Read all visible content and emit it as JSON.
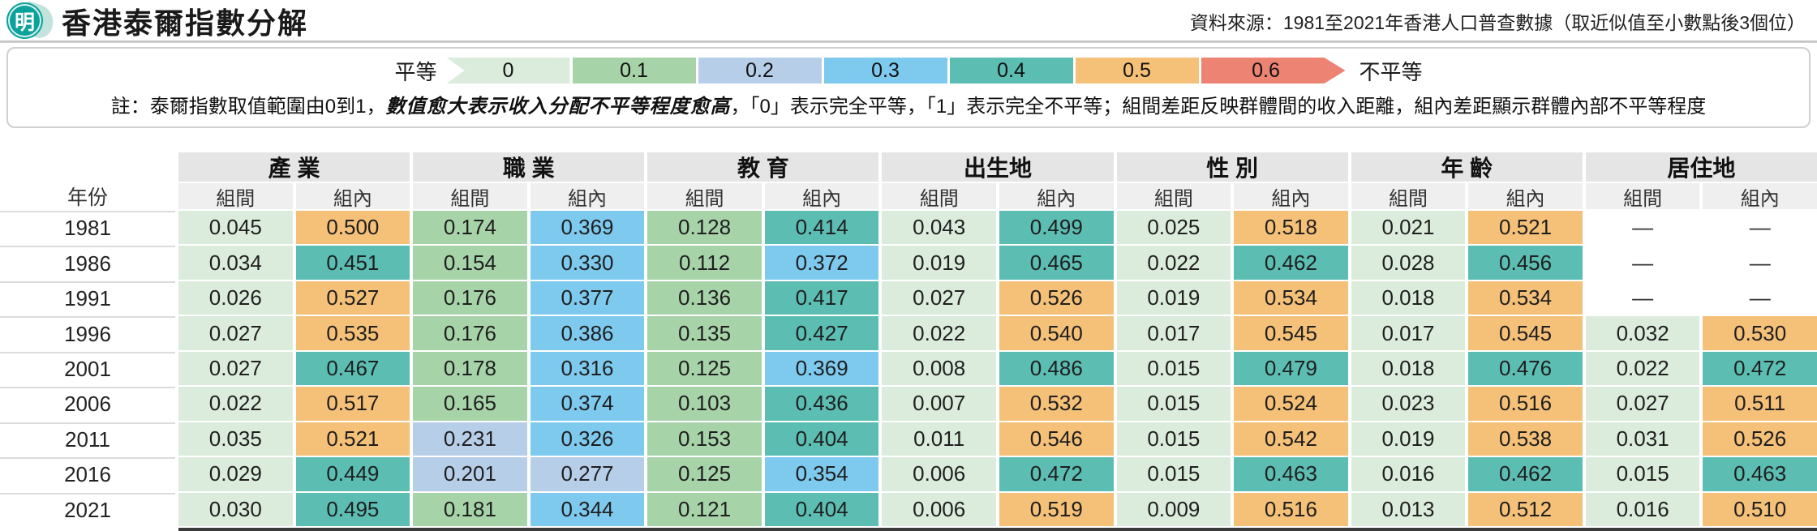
{
  "header": {
    "logo_text": "明",
    "title": "香港泰爾指數分解",
    "source": "資料來源：1981至2021年香港人口普查數據（取近似值至小數點後3個位）"
  },
  "legend": {
    "equal_label": "平等",
    "unequal_label": "不平等",
    "buckets": [
      {
        "label": "0",
        "color": "#dcecdc"
      },
      {
        "label": "0.1",
        "color": "#a7d3a9"
      },
      {
        "label": "0.2",
        "color": "#b7cee9"
      },
      {
        "label": "0.3",
        "color": "#7ec9ee"
      },
      {
        "label": "0.4",
        "color": "#5cbdb3"
      },
      {
        "label": "0.5",
        "color": "#f5c078"
      },
      {
        "label": "0.6",
        "color": "#ec8373"
      }
    ],
    "note_prefix": "註：泰爾指數取值範圍由0到1，",
    "note_bold": "數值愈大表示收入分配不平等程度愈高",
    "note_suffix": "，「0」表示完全平等，「1」表示完全不平等；組間差距反映群體間的收入距離，組內差距顯示群體內部不平等程度"
  },
  "chart_data": {
    "type": "heatmap-table",
    "title": "香港泰爾指數分解",
    "row_header": "年份",
    "groups": [
      "產 業",
      "職 業",
      "教 育",
      "出生地",
      "性 別",
      "年 齡",
      "居住地"
    ],
    "subcolumns": [
      "組間",
      "組內"
    ],
    "color_scale": {
      "min": 0,
      "max": 0.6,
      "step": 0.1,
      "equal": "平等",
      "unequal": "不平等"
    },
    "rows": [
      {
        "year": "1981",
        "values": [
          "0.045",
          "0.500",
          "0.174",
          "0.369",
          "0.128",
          "0.414",
          "0.043",
          "0.499",
          "0.025",
          "0.518",
          "0.021",
          "0.521",
          "—",
          "—"
        ]
      },
      {
        "year": "1986",
        "values": [
          "0.034",
          "0.451",
          "0.154",
          "0.330",
          "0.112",
          "0.372",
          "0.019",
          "0.465",
          "0.022",
          "0.462",
          "0.028",
          "0.456",
          "—",
          "—"
        ]
      },
      {
        "year": "1991",
        "values": [
          "0.026",
          "0.527",
          "0.176",
          "0.377",
          "0.136",
          "0.417",
          "0.027",
          "0.526",
          "0.019",
          "0.534",
          "0.018",
          "0.534",
          "—",
          "—"
        ]
      },
      {
        "year": "1996",
        "values": [
          "0.027",
          "0.535",
          "0.176",
          "0.386",
          "0.135",
          "0.427",
          "0.022",
          "0.540",
          "0.017",
          "0.545",
          "0.017",
          "0.545",
          "0.032",
          "0.530"
        ]
      },
      {
        "year": "2001",
        "values": [
          "0.027",
          "0.467",
          "0.178",
          "0.316",
          "0.125",
          "0.369",
          "0.008",
          "0.486",
          "0.015",
          "0.479",
          "0.018",
          "0.476",
          "0.022",
          "0.472"
        ]
      },
      {
        "year": "2006",
        "values": [
          "0.022",
          "0.517",
          "0.165",
          "0.374",
          "0.103",
          "0.436",
          "0.007",
          "0.532",
          "0.015",
          "0.524",
          "0.023",
          "0.516",
          "0.027",
          "0.511"
        ]
      },
      {
        "year": "2011",
        "values": [
          "0.035",
          "0.521",
          "0.231",
          "0.326",
          "0.153",
          "0.404",
          "0.011",
          "0.546",
          "0.015",
          "0.542",
          "0.019",
          "0.538",
          "0.031",
          "0.526"
        ]
      },
      {
        "year": "2016",
        "values": [
          "0.029",
          "0.449",
          "0.201",
          "0.277",
          "0.125",
          "0.354",
          "0.006",
          "0.472",
          "0.015",
          "0.463",
          "0.016",
          "0.462",
          "0.015",
          "0.463"
        ]
      },
      {
        "year": "2021",
        "values": [
          "0.030",
          "0.495",
          "0.181",
          "0.344",
          "0.121",
          "0.404",
          "0.006",
          "0.519",
          "0.009",
          "0.516",
          "0.013",
          "0.512",
          "0.016",
          "0.510"
        ]
      }
    ]
  }
}
